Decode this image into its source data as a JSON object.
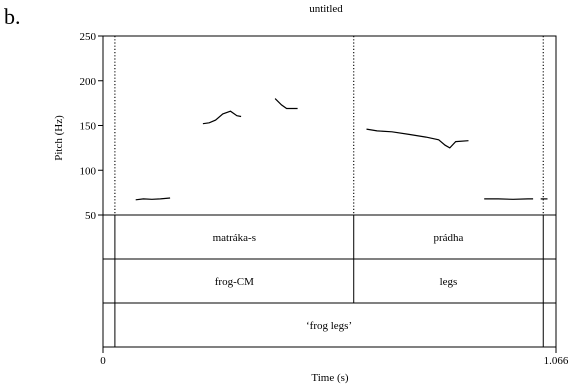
{
  "panel_label": "b.",
  "chart_data": {
    "type": "line",
    "title": "untitled",
    "xlabel": "Time (s)",
    "ylabel": "Pitch (Hz)",
    "xlim": [
      0,
      1.066
    ],
    "ylim": [
      50,
      250
    ],
    "x_tick_labels": [
      "0",
      "1.066"
    ],
    "y_ticks": [
      50,
      100,
      150,
      200,
      250
    ],
    "boundaries": [
      0.028,
      0.59,
      1.036
    ],
    "series": [
      {
        "segments": [
          [
            [
              0.077,
              67
            ],
            [
              0.095,
              68
            ],
            [
              0.115,
              67.5
            ],
            [
              0.135,
              68
            ],
            [
              0.158,
              69
            ]
          ],
          [
            [
              0.235,
              152
            ],
            [
              0.25,
              153
            ],
            [
              0.265,
              156
            ],
            [
              0.282,
              163
            ],
            [
              0.3,
              166
            ],
            [
              0.315,
              161
            ],
            [
              0.325,
              160
            ]
          ],
          [
            [
              0.405,
              180
            ],
            [
              0.42,
              173
            ],
            [
              0.432,
              169
            ],
            [
              0.458,
              169
            ]
          ],
          [
            [
              0.62,
              146
            ],
            [
              0.645,
              144
            ],
            [
              0.68,
              143
            ],
            [
              0.72,
              140
            ],
            [
              0.76,
              137
            ],
            [
              0.79,
              134
            ],
            [
              0.805,
              128
            ],
            [
              0.816,
              125
            ],
            [
              0.83,
              132
            ],
            [
              0.86,
              133
            ]
          ],
          [
            [
              0.897,
              68
            ],
            [
              0.93,
              68
            ],
            [
              0.965,
              67.5
            ],
            [
              1.0,
              68
            ],
            [
              1.012,
              68
            ]
          ],
          [
            [
              1.03,
              68
            ],
            [
              1.046,
              68
            ]
          ]
        ]
      }
    ]
  },
  "tiers": [
    {
      "boundaries": [
        0.028,
        0.59,
        1.036
      ],
      "labels": [
        "matráka-s",
        "prádha"
      ]
    },
    {
      "boundaries": [
        0.028,
        0.59,
        1.036
      ],
      "labels": [
        "frog-CM",
        "legs"
      ]
    },
    {
      "boundaries": [
        0.028,
        1.036
      ],
      "labels": [
        "‘frog legs’"
      ]
    }
  ]
}
